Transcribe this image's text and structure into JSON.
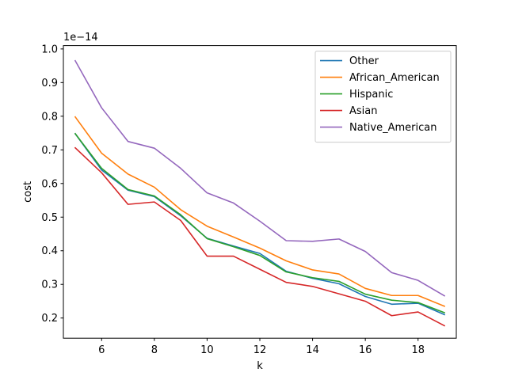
{
  "chart_data": {
    "type": "line",
    "xlabel": "k",
    "ylabel": "cost",
    "y_offset_label": "1e−14",
    "xlim": [
      4.55,
      19.45
    ],
    "ylim": [
      0.14,
      1.01
    ],
    "x_ticks": [
      6,
      8,
      10,
      12,
      14,
      16,
      18
    ],
    "y_ticks": [
      0.2,
      0.3,
      0.4,
      0.5,
      0.6,
      0.7,
      0.8,
      0.9,
      1.0
    ],
    "y_tick_labels": [
      "0.2",
      "0.3",
      "0.4",
      "0.5",
      "0.6",
      "0.7",
      "0.8",
      "0.9",
      "1.0"
    ],
    "legend_position": "top-right",
    "grid": false,
    "x": [
      5,
      6,
      7,
      8,
      9,
      10,
      11,
      12,
      13,
      14,
      15,
      16,
      17,
      18,
      19
    ],
    "series": [
      {
        "name": "Other",
        "color": "#1f77b4",
        "values": [
          0.748,
          0.64,
          0.58,
          0.561,
          0.504,
          0.437,
          0.414,
          0.392,
          0.339,
          0.318,
          0.302,
          0.264,
          0.241,
          0.244,
          0.21
        ]
      },
      {
        "name": "African_American",
        "color": "#ff7f0e",
        "values": [
          0.798,
          0.69,
          0.628,
          0.589,
          0.522,
          0.473,
          0.441,
          0.408,
          0.37,
          0.343,
          0.331,
          0.288,
          0.267,
          0.267,
          0.235
        ]
      },
      {
        "name": "Hispanic",
        "color": "#2ca02c",
        "values": [
          0.748,
          0.645,
          0.582,
          0.563,
          0.507,
          0.436,
          0.412,
          0.386,
          0.337,
          0.32,
          0.309,
          0.271,
          0.253,
          0.246,
          0.216
        ]
      },
      {
        "name": "Asian",
        "color": "#d62728",
        "values": [
          0.706,
          0.632,
          0.538,
          0.545,
          0.49,
          0.384,
          0.384,
          0.345,
          0.306,
          0.294,
          0.272,
          0.25,
          0.207,
          0.218,
          0.177
        ]
      },
      {
        "name": "Native_American",
        "color": "#9467bd",
        "values": [
          0.965,
          0.825,
          0.725,
          0.705,
          0.645,
          0.572,
          0.542,
          0.488,
          0.43,
          0.428,
          0.435,
          0.398,
          0.335,
          0.312,
          0.266
        ]
      }
    ]
  }
}
